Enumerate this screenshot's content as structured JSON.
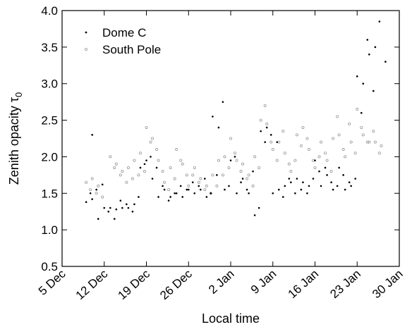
{
  "chart_data": {
    "type": "scatter",
    "xlabel": "Local time",
    "ylabel_main": "Zenith opacity τ",
    "ylabel_sub": "0",
    "xlim": [
      "2005-12-05",
      "2006-01-30"
    ],
    "ylim": [
      0.5,
      4.0
    ],
    "grid": false,
    "legend_position": "top-left",
    "x_ticks": [
      {
        "date": "2005-12-05",
        "label": "5 Dec"
      },
      {
        "date": "2005-12-12",
        "label": "12 Dec"
      },
      {
        "date": "2005-12-19",
        "label": "19 Dec"
      },
      {
        "date": "2005-12-26",
        "label": "26 Dec"
      },
      {
        "date": "2006-01-02",
        "label": "2 Jan"
      },
      {
        "date": "2006-01-09",
        "label": "9 Jan"
      },
      {
        "date": "2006-01-16",
        "label": "16 Jan"
      },
      {
        "date": "2006-01-23",
        "label": "23 Jan"
      },
      {
        "date": "2006-01-30",
        "label": "30 Jan"
      }
    ],
    "y_ticks": [
      {
        "value": 0.5,
        "label": "0.5"
      },
      {
        "value": 1.0,
        "label": "1.0"
      },
      {
        "value": 1.5,
        "label": "1.5"
      },
      {
        "value": 2.0,
        "label": "2.0"
      },
      {
        "value": 2.5,
        "label": "2.5"
      },
      {
        "value": 3.0,
        "label": "3.0"
      },
      {
        "value": 3.5,
        "label": "3.5"
      },
      {
        "value": 4.0,
        "label": "4.0"
      }
    ],
    "series": [
      {
        "name": "Dome C",
        "marker": "filled-dot",
        "color": "#000000",
        "x": [
          "2005-12-09",
          "2005-12-09",
          "2005-12-10",
          "2005-12-10",
          "2005-12-10",
          "2005-12-11",
          "2005-12-11",
          "2005-12-12",
          "2005-12-12",
          "2005-12-13",
          "2005-12-13",
          "2005-12-14",
          "2005-12-14",
          "2005-12-15",
          "2005-12-15",
          "2005-12-16",
          "2005-12-16",
          "2005-12-17",
          "2005-12-17",
          "2005-12-18",
          "2005-12-18",
          "2005-12-19",
          "2005-12-19",
          "2005-12-20",
          "2005-12-20",
          "2005-12-21",
          "2005-12-21",
          "2005-12-22",
          "2005-12-22",
          "2005-12-23",
          "2005-12-23",
          "2005-12-24",
          "2005-12-24",
          "2005-12-25",
          "2005-12-25",
          "2005-12-26",
          "2005-12-26",
          "2005-12-27",
          "2005-12-27",
          "2005-12-28",
          "2005-12-28",
          "2005-12-29",
          "2005-12-29",
          "2005-12-30",
          "2005-12-30",
          "2005-12-31",
          "2005-12-31",
          "2006-01-01",
          "2006-01-01",
          "2006-01-02",
          "2006-01-02",
          "2006-01-03",
          "2006-01-03",
          "2006-01-04",
          "2006-01-04",
          "2006-01-05",
          "2006-01-05",
          "2006-01-06",
          "2006-01-06",
          "2006-01-07",
          "2006-01-07",
          "2006-01-08",
          "2006-01-08",
          "2006-01-09",
          "2006-01-09",
          "2006-01-10",
          "2006-01-10",
          "2006-01-11",
          "2006-01-11",
          "2006-01-12",
          "2006-01-12",
          "2006-01-13",
          "2006-01-13",
          "2006-01-14",
          "2006-01-14",
          "2006-01-15",
          "2006-01-15",
          "2006-01-16",
          "2006-01-16",
          "2006-01-17",
          "2006-01-17",
          "2006-01-18",
          "2006-01-18",
          "2006-01-19",
          "2006-01-19",
          "2006-01-20",
          "2006-01-20",
          "2006-01-21",
          "2006-01-21",
          "2006-01-22",
          "2006-01-22",
          "2006-01-23",
          "2006-01-23",
          "2006-01-24",
          "2006-01-24",
          "2006-01-25",
          "2006-01-25",
          "2006-01-26",
          "2006-01-26",
          "2006-01-27"
        ],
        "y": [
          1.38,
          1.5,
          2.3,
          1.55,
          1.42,
          1.62,
          1.15,
          1.25,
          1.3,
          1.15,
          1.3,
          1.4,
          1.28,
          1.35,
          1.3,
          1.25,
          1.3,
          1.45,
          1.35,
          1.9,
          1.85,
          2.0,
          1.95,
          1.85,
          1.7,
          1.6,
          1.45,
          1.4,
          1.55,
          1.5,
          1.45,
          1.6,
          1.5,
          1.55,
          1.45,
          1.65,
          1.55,
          1.6,
          1.5,
          1.7,
          1.55,
          1.5,
          1.45,
          1.75,
          2.55,
          2.75,
          2.4,
          1.6,
          1.55,
          2.0,
          1.95,
          1.65,
          1.5,
          1.55,
          1.7,
          1.8,
          1.5,
          1.3,
          1.2,
          2.2,
          2.35,
          2.3,
          2.4,
          2.2,
          1.5,
          1.45,
          1.55,
          1.7,
          1.6,
          1.5,
          1.65,
          1.55,
          1.7,
          1.5,
          1.65,
          1.7,
          1.6,
          1.8,
          1.95,
          1.85,
          1.6,
          1.65,
          1.75,
          1.6,
          1.55,
          1.75,
          1.85,
          1.65,
          1.55,
          1.7,
          1.6,
          2.6,
          3.1,
          3.6,
          3.0,
          2.9,
          3.4,
          3.85,
          3.5,
          3.3
        ],
        "x_positions_note": ""
      },
      {
        "name": "South Pole",
        "marker": "open-circle",
        "color": "#999999",
        "x": [
          "2005-12-09",
          "2005-12-09",
          "2005-12-10",
          "2005-12-10",
          "2005-12-11",
          "2005-12-11",
          "2005-12-13",
          "2005-12-13",
          "2005-12-14",
          "2005-12-14",
          "2005-12-15",
          "2005-12-15",
          "2005-12-16",
          "2005-12-16",
          "2005-12-17",
          "2005-12-17",
          "2005-12-18",
          "2005-12-18",
          "2005-12-19",
          "2005-12-19",
          "2005-12-20",
          "2005-12-20",
          "2005-12-21",
          "2005-12-21",
          "2005-12-22",
          "2005-12-22",
          "2005-12-23",
          "2005-12-23",
          "2005-12-24",
          "2005-12-24",
          "2005-12-25",
          "2005-12-25",
          "2005-12-26",
          "2005-12-26",
          "2005-12-27",
          "2005-12-27",
          "2005-12-28",
          "2005-12-28",
          "2005-12-29",
          "2005-12-29",
          "2005-12-30",
          "2005-12-30",
          "2005-12-31",
          "2005-12-31",
          "2006-01-01",
          "2006-01-01",
          "2006-01-02",
          "2006-01-02",
          "2006-01-03",
          "2006-01-03",
          "2006-01-04",
          "2006-01-04",
          "2006-01-05",
          "2006-01-05",
          "2006-01-06",
          "2006-01-06",
          "2006-01-07",
          "2006-01-07",
          "2006-01-08",
          "2006-01-08",
          "2006-01-09",
          "2006-01-09",
          "2006-01-10",
          "2006-01-10",
          "2006-01-11",
          "2006-01-11",
          "2006-01-12",
          "2006-01-12",
          "2006-01-13",
          "2006-01-13",
          "2006-01-14",
          "2006-01-14",
          "2006-01-15",
          "2006-01-15",
          "2006-01-16",
          "2006-01-16",
          "2006-01-17",
          "2006-01-17",
          "2006-01-18",
          "2006-01-18",
          "2006-01-19",
          "2006-01-19",
          "2006-01-20",
          "2006-01-20",
          "2006-01-21",
          "2006-01-21",
          "2006-01-22",
          "2006-01-22",
          "2006-01-23",
          "2006-01-23",
          "2006-01-24",
          "2006-01-24",
          "2006-01-25",
          "2006-01-25",
          "2006-01-26",
          "2006-01-26",
          "2006-01-27"
        ],
        "y": [
          1.65,
          1.55,
          1.7,
          1.5,
          1.6,
          1.45,
          2.0,
          1.85,
          1.9,
          1.75,
          1.8,
          1.65,
          1.85,
          1.7,
          1.95,
          1.75,
          2.05,
          1.8,
          2.4,
          2.2,
          2.25,
          2.1,
          1.95,
          1.8,
          1.65,
          1.55,
          1.85,
          1.7,
          2.1,
          1.95,
          1.9,
          1.75,
          1.6,
          1.75,
          1.85,
          1.65,
          1.7,
          1.55,
          1.6,
          1.5,
          1.75,
          1.6,
          1.95,
          1.75,
          2.0,
          1.85,
          2.25,
          2.05,
          1.95,
          1.8,
          1.9,
          1.7,
          1.75,
          1.6,
          2.0,
          1.85,
          2.5,
          2.7,
          2.45,
          2.2,
          2.1,
          1.95,
          2.2,
          2.35,
          2.05,
          1.9,
          1.8,
          1.95,
          2.3,
          2.15,
          2.4,
          2.25,
          2.1,
          1.95,
          1.85,
          2.0,
          2.2,
          2.05,
          1.95,
          1.8,
          2.25,
          2.55,
          2.3,
          2.1,
          2.0,
          2.45,
          2.2,
          2.05,
          2.65,
          2.4,
          2.3,
          2.2,
          2.2,
          2.35,
          2.2,
          2.05,
          2.15
        ]
      }
    ]
  }
}
